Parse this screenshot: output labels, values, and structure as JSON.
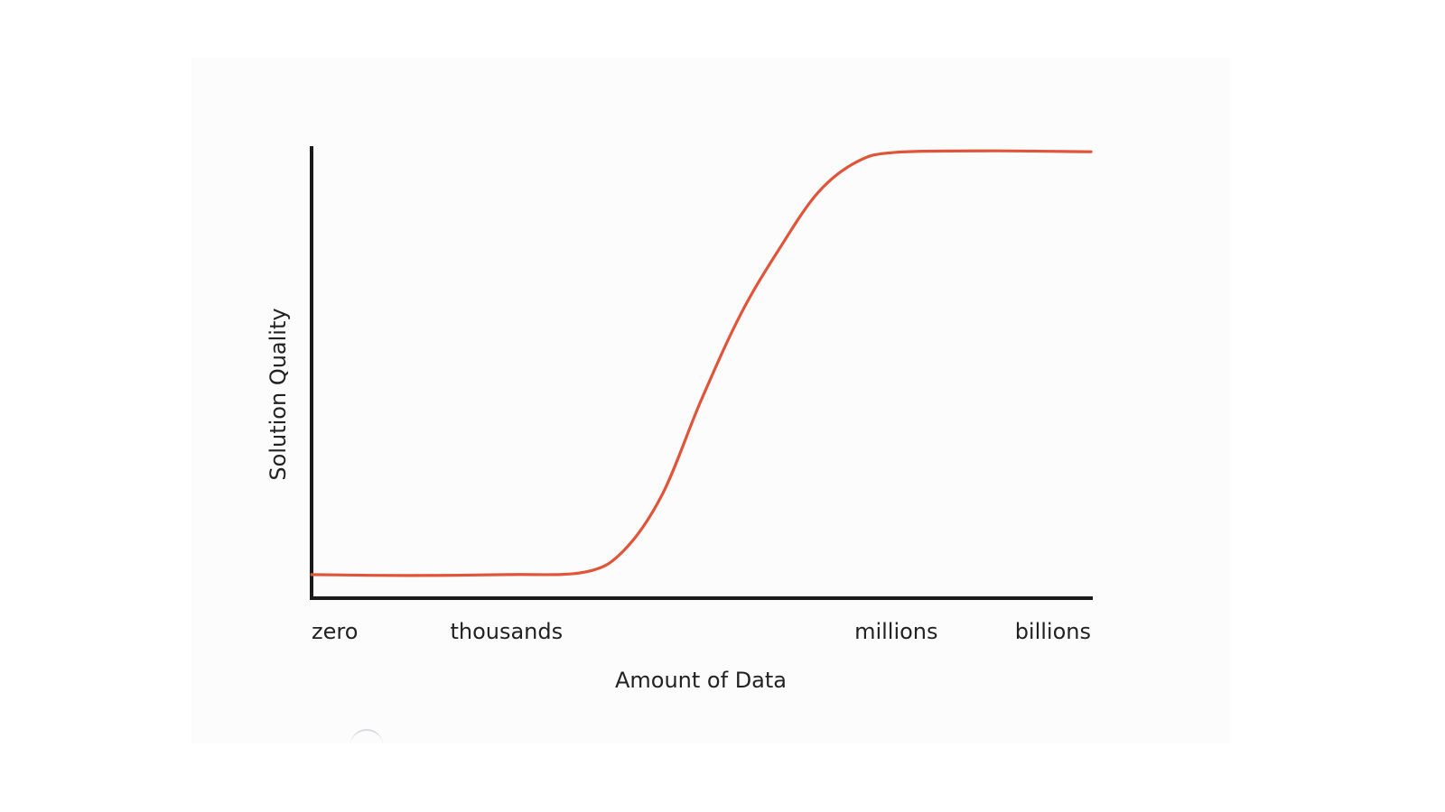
{
  "chart_data": {
    "type": "line",
    "title": "",
    "xlabel": "Amount of Data",
    "ylabel": "Solution Quality",
    "x_tick_labels": [
      "zero",
      "thousands",
      "millions",
      "billions"
    ],
    "x_tick_positions": [
      0,
      1,
      3,
      4
    ],
    "xlim": [
      0,
      4
    ],
    "ylim": [
      0,
      1
    ],
    "grid": false,
    "legend": "none",
    "series": [
      {
        "color": "#e0553a",
        "x": [
          0,
          0.5,
          1.0,
          1.4,
          1.6,
          1.8,
          2.0,
          2.2,
          2.4,
          2.6,
          2.8,
          3.0,
          3.5,
          4.0
        ],
        "y": [
          0.05,
          0.048,
          0.05,
          0.055,
          0.1,
          0.22,
          0.42,
          0.6,
          0.74,
          0.86,
          0.925,
          0.945,
          0.948,
          0.946
        ]
      }
    ]
  }
}
